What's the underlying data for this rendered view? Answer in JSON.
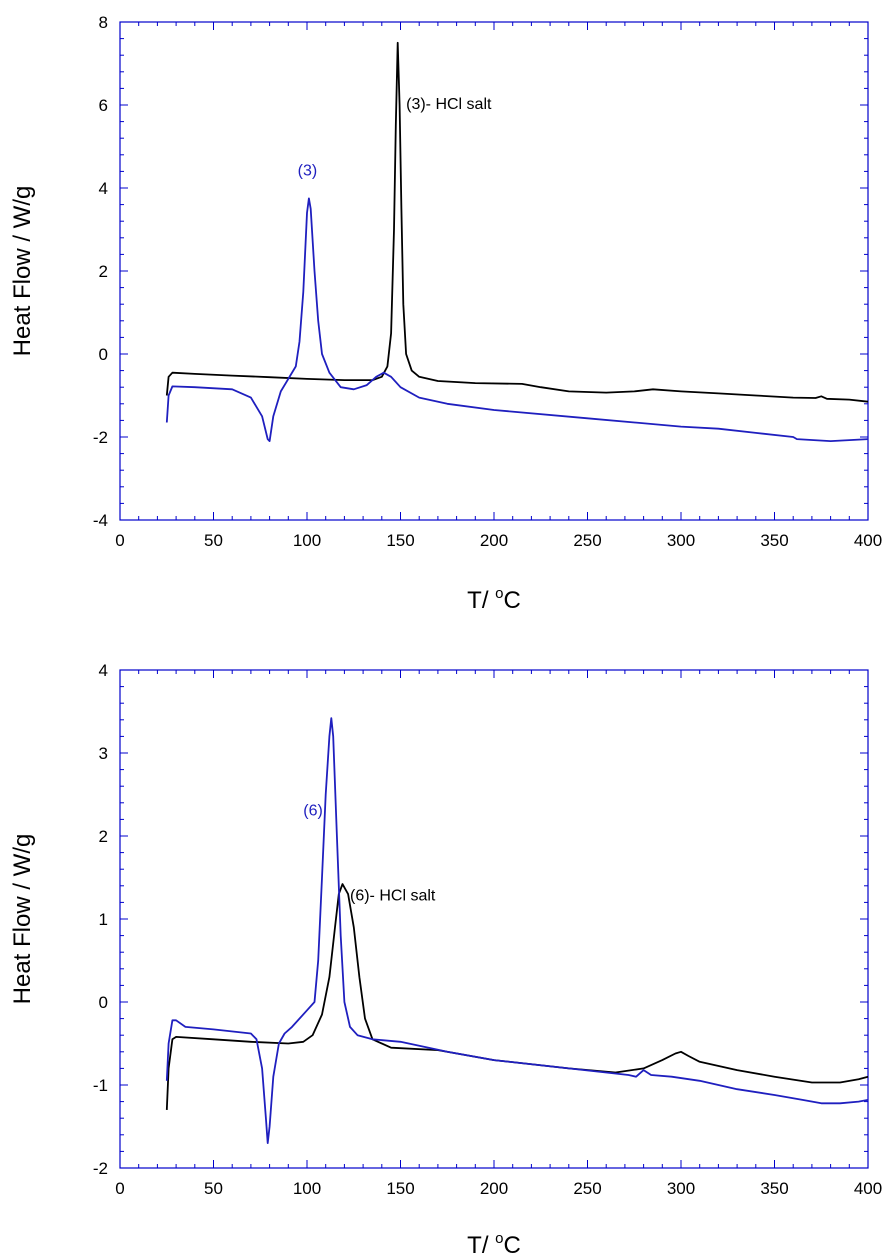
{
  "chart_data": [
    {
      "type": "line",
      "xlabel": "T/ °C",
      "xlabel_main": "T/ ",
      "xlabel_sup": "o",
      "xlabel_unit": "C",
      "ylabel": "Heat Flow / W/g",
      "xlim": [
        0,
        400
      ],
      "ylim": [
        -4,
        8
      ],
      "x_ticks": [
        "0",
        "50",
        "100",
        "150",
        "200",
        "250",
        "300",
        "350",
        "400"
      ],
      "y_ticks": [
        "-4",
        "-2",
        "0",
        "2",
        "4",
        "6",
        "8"
      ],
      "grid": false,
      "series": [
        {
          "name": "(3)- HCl salt",
          "color": "#000000",
          "points": [
            [
              25,
              -1.0
            ],
            [
              26,
              -0.55
            ],
            [
              28,
              -0.45
            ],
            [
              40,
              -0.48
            ],
            [
              60,
              -0.52
            ],
            [
              80,
              -0.56
            ],
            [
              100,
              -0.6
            ],
            [
              120,
              -0.63
            ],
            [
              135,
              -0.63
            ],
            [
              140,
              -0.55
            ],
            [
              143,
              -0.3
            ],
            [
              145,
              0.5
            ],
            [
              146.5,
              3.0
            ],
            [
              147.5,
              5.5
            ],
            [
              148.5,
              7.5
            ],
            [
              149.5,
              6.0
            ],
            [
              150.5,
              3.5
            ],
            [
              151.5,
              1.2
            ],
            [
              153,
              0.0
            ],
            [
              156,
              -0.4
            ],
            [
              160,
              -0.55
            ],
            [
              170,
              -0.65
            ],
            [
              190,
              -0.7
            ],
            [
              215,
              -0.72
            ],
            [
              225,
              -0.8
            ],
            [
              240,
              -0.9
            ],
            [
              260,
              -0.93
            ],
            [
              275,
              -0.9
            ],
            [
              285,
              -0.85
            ],
            [
              300,
              -0.9
            ],
            [
              320,
              -0.95
            ],
            [
              340,
              -1.0
            ],
            [
              360,
              -1.05
            ],
            [
              372,
              -1.06
            ],
            [
              375,
              -1.02
            ],
            [
              378,
              -1.08
            ],
            [
              390,
              -1.1
            ],
            [
              400,
              -1.15
            ]
          ]
        },
        {
          "name": "(3)",
          "color": "#1f1fbf",
          "points": [
            [
              25,
              -1.65
            ],
            [
              26,
              -1.0
            ],
            [
              28,
              -0.78
            ],
            [
              40,
              -0.8
            ],
            [
              60,
              -0.85
            ],
            [
              70,
              -1.05
            ],
            [
              76,
              -1.5
            ],
            [
              79,
              -2.05
            ],
            [
              80,
              -2.1
            ],
            [
              82,
              -1.5
            ],
            [
              86,
              -0.9
            ],
            [
              90,
              -0.6
            ],
            [
              94,
              -0.3
            ],
            [
              96,
              0.3
            ],
            [
              98,
              1.5
            ],
            [
              100,
              3.4
            ],
            [
              101,
              3.75
            ],
            [
              102,
              3.5
            ],
            [
              104,
              2.0
            ],
            [
              106,
              0.8
            ],
            [
              108,
              0.0
            ],
            [
              112,
              -0.45
            ],
            [
              118,
              -0.8
            ],
            [
              125,
              -0.85
            ],
            [
              132,
              -0.75
            ],
            [
              137,
              -0.55
            ],
            [
              141,
              -0.45
            ],
            [
              145,
              -0.55
            ],
            [
              150,
              -0.8
            ],
            [
              160,
              -1.05
            ],
            [
              175,
              -1.2
            ],
            [
              200,
              -1.35
            ],
            [
              250,
              -1.55
            ],
            [
              300,
              -1.75
            ],
            [
              320,
              -1.8
            ],
            [
              340,
              -1.9
            ],
            [
              360,
              -2.0
            ],
            [
              362,
              -2.05
            ],
            [
              380,
              -2.1
            ],
            [
              400,
              -2.05
            ]
          ]
        }
      ],
      "annotations": [
        {
          "text": "(3)- HCl salt",
          "x": 153,
          "y": 5.9,
          "color": "#000000"
        },
        {
          "text": "(3)",
          "x": 95,
          "y": 4.3,
          "color": "#1f1fbf"
        }
      ]
    },
    {
      "type": "line",
      "xlabel": "T/ °C",
      "xlabel_main": "T/ ",
      "xlabel_sup": "o",
      "xlabel_unit": "C",
      "ylabel": "Heat Flow / W/g",
      "xlim": [
        0,
        400
      ],
      "ylim": [
        -2,
        4
      ],
      "x_ticks": [
        "0",
        "50",
        "100",
        "150",
        "200",
        "250",
        "300",
        "350",
        "400"
      ],
      "y_ticks": [
        "-2",
        "-1",
        "0",
        "1",
        "2",
        "3",
        "4"
      ],
      "grid": false,
      "series": [
        {
          "name": "(6)- HCl salt",
          "color": "#000000",
          "points": [
            [
              25,
              -1.3
            ],
            [
              26,
              -0.8
            ],
            [
              28,
              -0.45
            ],
            [
              30,
              -0.42
            ],
            [
              50,
              -0.45
            ],
            [
              70,
              -0.48
            ],
            [
              90,
              -0.5
            ],
            [
              98,
              -0.48
            ],
            [
              103,
              -0.4
            ],
            [
              108,
              -0.15
            ],
            [
              112,
              0.3
            ],
            [
              115,
              0.9
            ],
            [
              117,
              1.3
            ],
            [
              119,
              1.42
            ],
            [
              122,
              1.3
            ],
            [
              125,
              0.9
            ],
            [
              128,
              0.3
            ],
            [
              131,
              -0.2
            ],
            [
              135,
              -0.45
            ],
            [
              145,
              -0.55
            ],
            [
              170,
              -0.58
            ],
            [
              200,
              -0.7
            ],
            [
              240,
              -0.8
            ],
            [
              265,
              -0.85
            ],
            [
              280,
              -0.8
            ],
            [
              290,
              -0.7
            ],
            [
              297,
              -0.62
            ],
            [
              300,
              -0.6
            ],
            [
              304,
              -0.65
            ],
            [
              310,
              -0.72
            ],
            [
              330,
              -0.82
            ],
            [
              350,
              -0.9
            ],
            [
              370,
              -0.97
            ],
            [
              385,
              -0.97
            ],
            [
              395,
              -0.93
            ],
            [
              400,
              -0.9
            ]
          ]
        },
        {
          "name": "(6)",
          "color": "#1f1fbf",
          "points": [
            [
              25,
              -0.95
            ],
            [
              26,
              -0.5
            ],
            [
              28,
              -0.22
            ],
            [
              30,
              -0.22
            ],
            [
              35,
              -0.3
            ],
            [
              50,
              -0.33
            ],
            [
              70,
              -0.38
            ],
            [
              73,
              -0.45
            ],
            [
              76,
              -0.8
            ],
            [
              78,
              -1.4
            ],
            [
              79,
              -1.7
            ],
            [
              80,
              -1.5
            ],
            [
              82,
              -0.9
            ],
            [
              85,
              -0.5
            ],
            [
              88,
              -0.38
            ],
            [
              92,
              -0.3
            ],
            [
              100,
              -0.1
            ],
            [
              104,
              0.0
            ],
            [
              106,
              0.5
            ],
            [
              108,
              1.5
            ],
            [
              110,
              2.5
            ],
            [
              112,
              3.2
            ],
            [
              113,
              3.42
            ],
            [
              114,
              3.2
            ],
            [
              116,
              2.0
            ],
            [
              118,
              0.8
            ],
            [
              120,
              0.0
            ],
            [
              123,
              -0.3
            ],
            [
              127,
              -0.4
            ],
            [
              135,
              -0.45
            ],
            [
              150,
              -0.48
            ],
            [
              175,
              -0.6
            ],
            [
              200,
              -0.7
            ],
            [
              240,
              -0.8
            ],
            [
              260,
              -0.85
            ],
            [
              272,
              -0.88
            ],
            [
              276,
              -0.9
            ],
            [
              280,
              -0.82
            ],
            [
              284,
              -0.88
            ],
            [
              295,
              -0.9
            ],
            [
              310,
              -0.95
            ],
            [
              330,
              -1.05
            ],
            [
              350,
              -1.12
            ],
            [
              365,
              -1.18
            ],
            [
              375,
              -1.22
            ],
            [
              385,
              -1.22
            ],
            [
              395,
              -1.2
            ],
            [
              400,
              -1.18
            ]
          ]
        }
      ],
      "annotations": [
        {
          "text": "(6)- HCl salt",
          "x": 123,
          "y": 1.22,
          "color": "#000000"
        },
        {
          "text": "(6)",
          "x": 98,
          "y": 2.25,
          "color": "#1f1fbf"
        }
      ]
    }
  ]
}
